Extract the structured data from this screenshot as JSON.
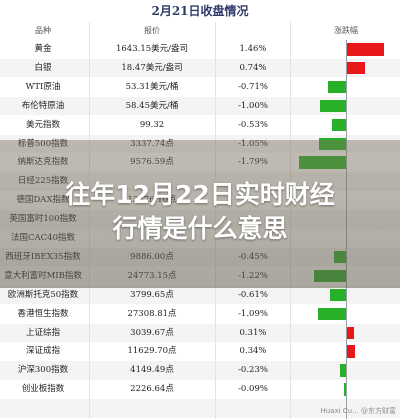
{
  "title": "2月21日收盘情况",
  "headers": {
    "name": "品种",
    "price": "报价",
    "pct": "涨跌幅"
  },
  "rows": [
    {
      "name": "黄金",
      "price": "1643.15美元/盎司",
      "pct": "1.46%",
      "value": 1.46
    },
    {
      "name": "白银",
      "price": "18.47美元/盎司",
      "pct": "0.74%",
      "value": 0.74
    },
    {
      "name": "WTI原油",
      "price": "53.31美元/桶",
      "pct": "-0.71%",
      "value": -0.71
    },
    {
      "name": "布伦特原油",
      "price": "58.45美元/桶",
      "pct": "-1.00%",
      "value": -1.0
    },
    {
      "name": "美元指数",
      "price": "99.32",
      "pct": "-0.53%",
      "value": -0.53
    },
    {
      "name": "标普500指数",
      "price": "3337.74点",
      "pct": "-1.05%",
      "value": -1.05
    },
    {
      "name": "纳斯达克指数",
      "price": "9576.59点",
      "pct": "-1.79%",
      "value": -1.79
    },
    {
      "name": "日经225指数",
      "price": "",
      "pct": "",
      "value": 0
    },
    {
      "name": "德国DAX指数",
      "price": "13576.10点",
      "pct": "",
      "value": 0
    },
    {
      "name": "英国富时100指数",
      "price": "",
      "pct": "",
      "value": 0
    },
    {
      "name": "法国CAC40指数",
      "price": "",
      "pct": "",
      "value": 0
    },
    {
      "name": "西班牙IBEX35指数",
      "price": "9886.00点",
      "pct": "-0.45%",
      "value": -0.45
    },
    {
      "name": "意大利富时MIB指数",
      "price": "24773.15点",
      "pct": "-1.22%",
      "value": -1.22
    },
    {
      "name": "欧洲斯托克50指数",
      "price": "3799.65点",
      "pct": "-0.61%",
      "value": -0.61
    },
    {
      "name": "香港恒生指数",
      "price": "27308.81点",
      "pct": "-1.09%",
      "value": -1.09
    },
    {
      "name": "上证综指",
      "price": "3039.67点",
      "pct": "0.31%",
      "value": 0.31
    },
    {
      "name": "深证成指",
      "price": "11629.70点",
      "pct": "0.34%",
      "value": 0.34
    },
    {
      "name": "沪深300指数",
      "price": "4149.49点",
      "pct": "-0.23%",
      "value": -0.23
    },
    {
      "name": "创业板指数",
      "price": "2226.64点",
      "pct": "-0.09%",
      "value": -0.09
    },
    {
      "name": "",
      "price": "",
      "pct": "",
      "value": 0
    }
  ],
  "headline_line1": "往年12月22日实时财经",
  "headline_line2": "行情是什么意思",
  "watermark": "Huaxi Cu... @东方财富",
  "colors": {
    "up": "#e8171b",
    "down": "#28b028"
  }
}
